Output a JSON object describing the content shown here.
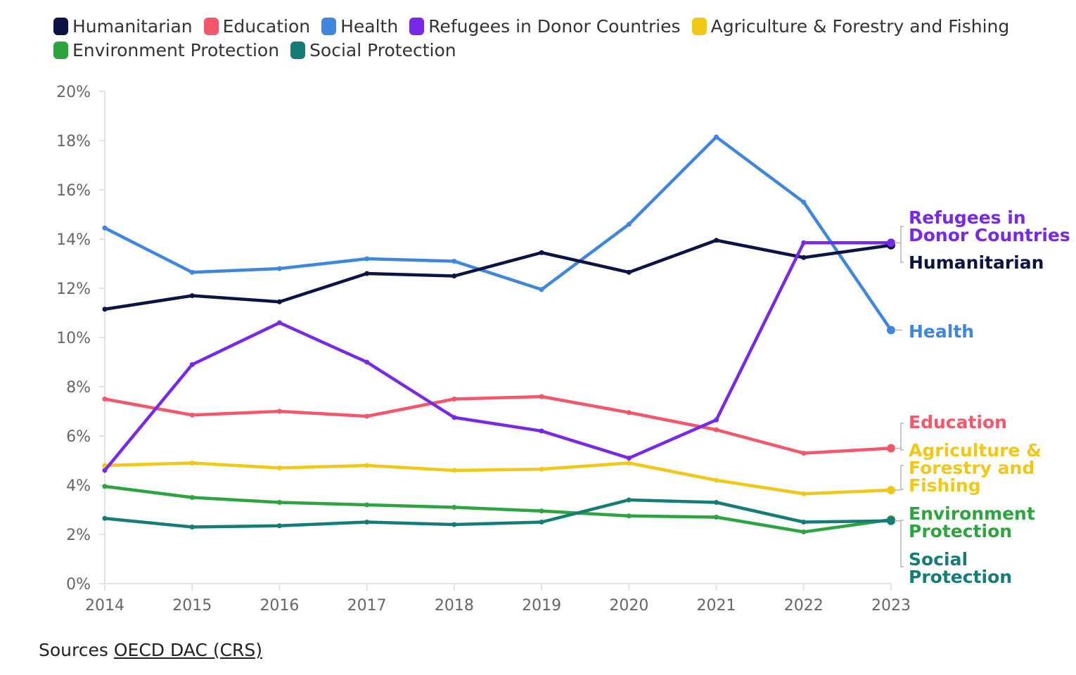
{
  "legend": [
    {
      "label": "Humanitarian",
      "color": "#0b1444"
    },
    {
      "label": "Education",
      "color": "#f4566a"
    },
    {
      "label": "Health",
      "color": "#3f86e0"
    },
    {
      "label": "Refugees in Donor Countries",
      "color": "#7829e8"
    },
    {
      "label": "Agriculture & Forestry and Fishing",
      "color": "#f2c716"
    },
    {
      "label": "Environment Protection",
      "color": "#2ca53f"
    },
    {
      "label": "Social Protection",
      "color": "#147d77"
    }
  ],
  "sources": {
    "prefix": "Sources",
    "link": "OECD DAC (CRS)"
  },
  "chart_data": {
    "type": "line",
    "x": [
      2014,
      2015,
      2016,
      2017,
      2018,
      2019,
      2020,
      2021,
      2022,
      2023
    ],
    "ylim": [
      0,
      20
    ],
    "yticks": [
      "0%",
      "2%",
      "4%",
      "6%",
      "8%",
      "10%",
      "12%",
      "14%",
      "16%",
      "18%",
      "20%"
    ],
    "ytick_values": [
      0,
      2,
      4,
      6,
      8,
      10,
      12,
      14,
      16,
      18,
      20
    ],
    "grid": false,
    "series": [
      {
        "name": "Agriculture & Forestry and Fishing",
        "color": "#f2c716",
        "end_label": [
          "Agriculture &",
          "Forestry and",
          "Fishing"
        ],
        "values": [
          4.8,
          4.9,
          4.7,
          4.8,
          4.6,
          4.65,
          4.9,
          4.2,
          3.65,
          3.8
        ]
      },
      {
        "name": "Environment Protection",
        "color": "#2ca53f",
        "end_label": [
          "Environment",
          "Protection"
        ],
        "values": [
          3.95,
          3.5,
          3.3,
          3.2,
          3.1,
          2.95,
          2.75,
          2.7,
          2.1,
          2.6
        ]
      },
      {
        "name": "Social Protection",
        "color": "#147d77",
        "end_label": [
          "Social",
          "Protection"
        ],
        "values": [
          2.65,
          2.3,
          2.35,
          2.5,
          2.4,
          2.5,
          3.4,
          3.3,
          2.5,
          2.55
        ]
      },
      {
        "name": "Education",
        "color": "#f4566a",
        "end_label": [
          "Education"
        ],
        "values": [
          7.5,
          6.85,
          7.0,
          6.8,
          7.5,
          7.6,
          6.95,
          6.25,
          5.3,
          5.5
        ]
      },
      {
        "name": "Health",
        "color": "#3f86e0",
        "end_label": [
          "Health"
        ],
        "values": [
          14.45,
          12.65,
          12.8,
          13.2,
          13.1,
          11.95,
          14.6,
          18.15,
          15.5,
          10.3
        ]
      },
      {
        "name": "Humanitarian",
        "color": "#0b1444",
        "end_label": [
          "Humanitarian"
        ],
        "values": [
          11.15,
          11.7,
          11.45,
          12.6,
          12.5,
          13.45,
          12.65,
          13.95,
          13.25,
          13.75
        ]
      },
      {
        "name": "Refugees in Donor Countries",
        "color": "#7829e8",
        "end_label": [
          "Refugees in",
          "Donor Countries"
        ],
        "values": [
          4.6,
          8.9,
          10.6,
          9.0,
          6.75,
          6.2,
          5.1,
          6.65,
          13.85,
          13.85
        ]
      }
    ]
  }
}
